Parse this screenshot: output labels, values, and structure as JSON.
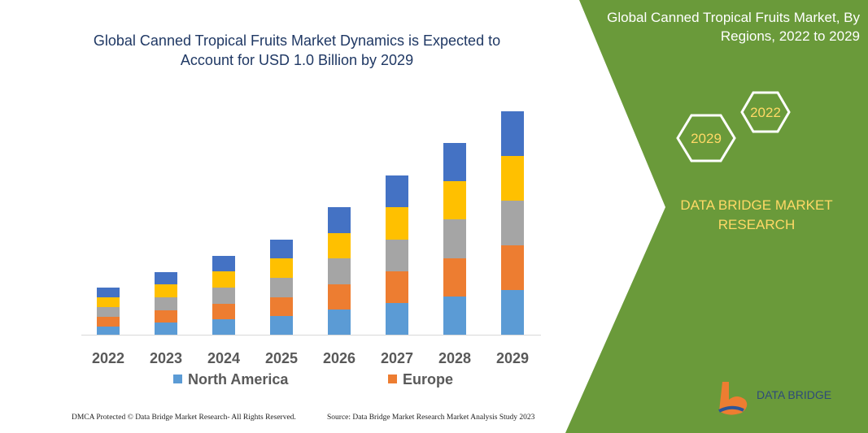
{
  "chart_data": {
    "type": "bar",
    "stacked": true,
    "title": "Global Canned Tropical Fruits Market Dynamics is Expected to Account for USD 1.0 Billion by 2029",
    "categories": [
      "2022",
      "2023",
      "2024",
      "2025",
      "2026",
      "2027",
      "2028",
      "2029"
    ],
    "series": [
      {
        "name": "North America",
        "color": "#5b9bd5",
        "values": [
          10,
          15,
          19,
          23,
          31,
          39,
          47,
          55
        ]
      },
      {
        "name": "Europe",
        "color": "#ed7d31",
        "values": [
          12,
          15,
          19,
          23,
          31,
          39,
          47,
          55
        ]
      },
      {
        "color": "#a5a5a5",
        "values": [
          12,
          16,
          20,
          24,
          32,
          39,
          48,
          55
        ]
      },
      {
        "color": "#ffc000",
        "values": [
          12,
          16,
          20,
          24,
          31,
          40,
          47,
          55
        ]
      },
      {
        "color": "#4472c4",
        "values": [
          12,
          15,
          19,
          23,
          32,
          39,
          47,
          55
        ]
      }
    ]
  },
  "panel": {
    "title": "Global Canned Tropical Fruits Market, By Regions, 2022 to 2029",
    "hexagons": [
      "2022",
      "2029"
    ],
    "brand": "DATA BRIDGE MARKET RESEARCH",
    "logo": "DATA BRIDGE"
  },
  "footer": {
    "left": "DMCA Protected © Data Bridge Market Research-  All Rights Reserved.",
    "right": "Source: Data Bridge Market Research  Market Analysis Study 2023"
  }
}
